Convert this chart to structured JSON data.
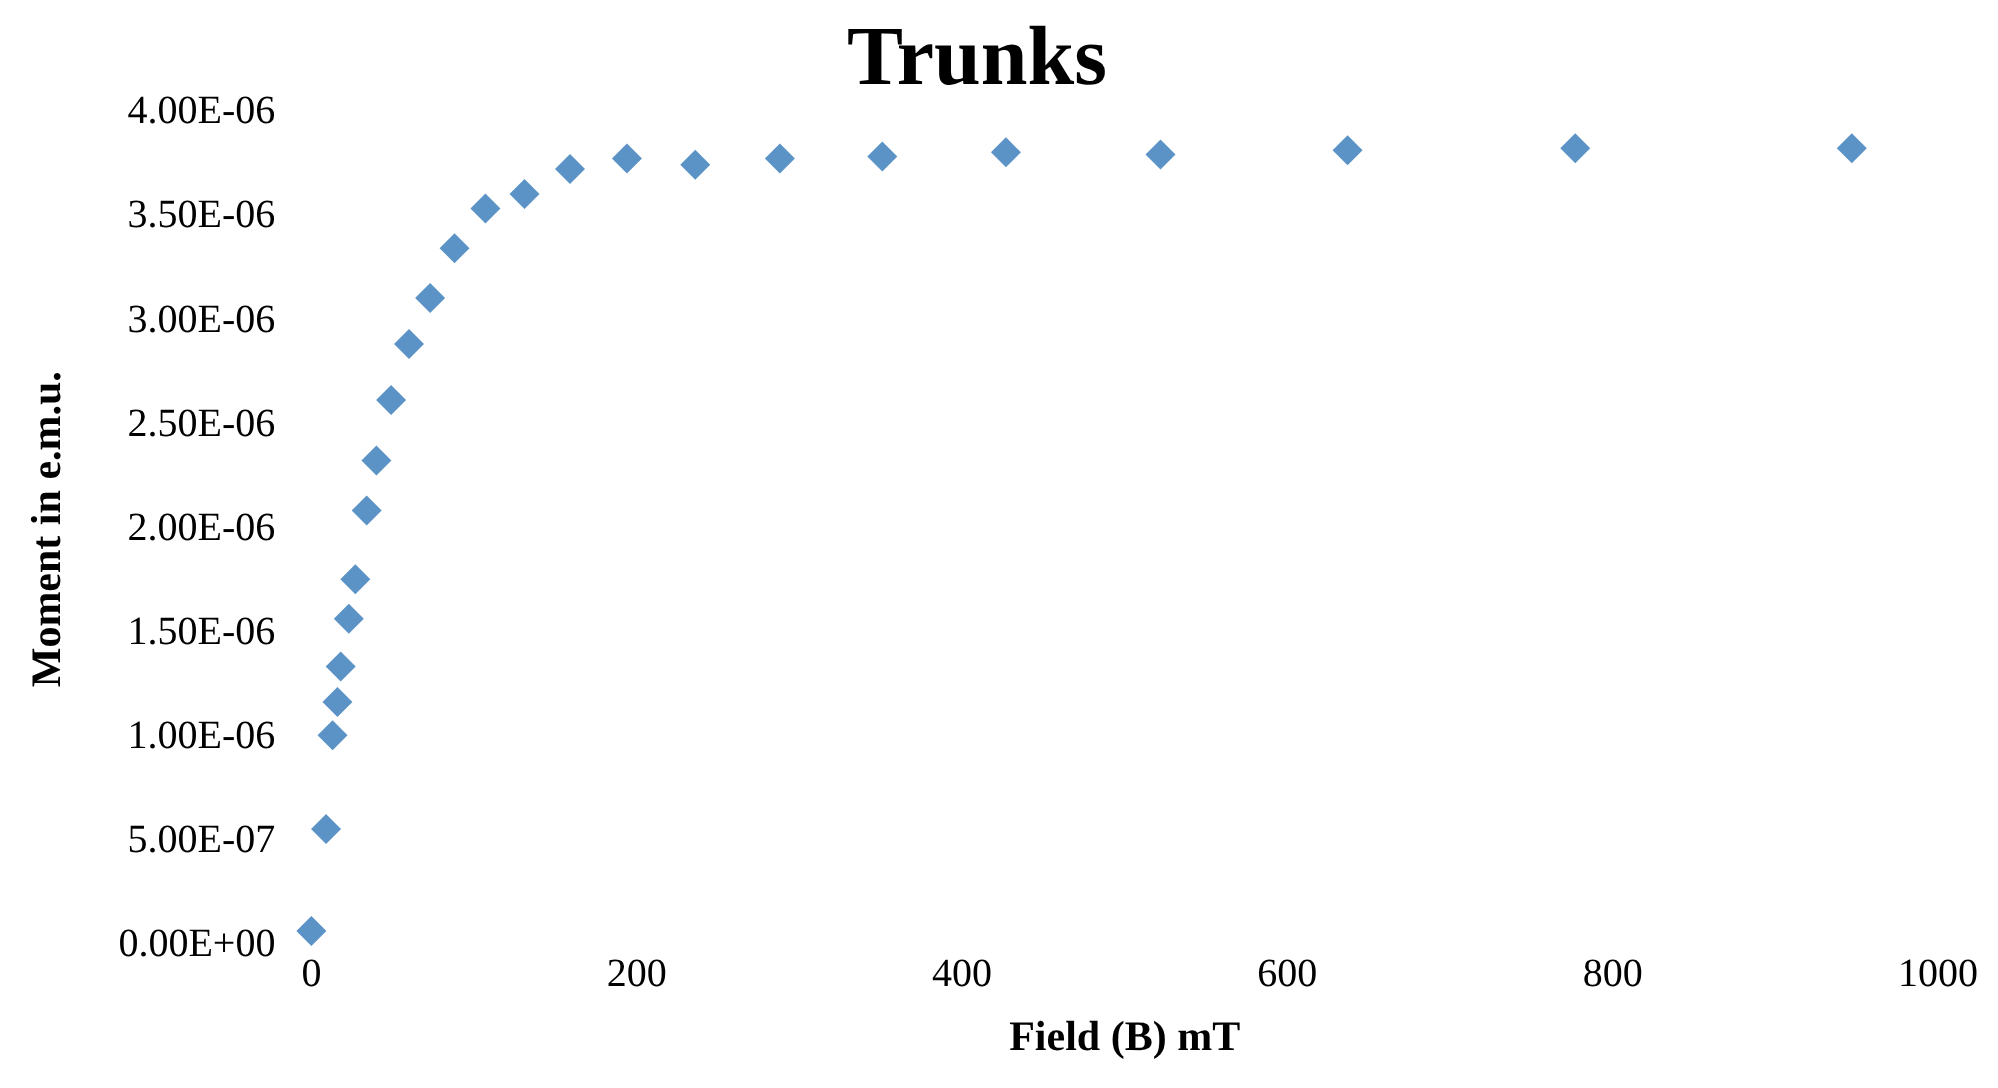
{
  "chart_data": {
    "type": "scatter",
    "title": "Trunks",
    "xlabel": "Field (B) mT",
    "ylabel": "Moment in e.m.u.",
    "x": [
      0,
      9,
      13,
      16,
      18,
      23,
      27,
      34,
      40,
      49,
      60,
      73,
      88,
      107,
      131,
      159,
      194,
      236,
      288,
      351,
      427,
      522,
      637,
      777,
      947
    ],
    "series": [
      {
        "color": "#5b93c7",
        "values": [
          7e-08,
          5.6e-07,
          1.01e-06,
          1.17e-06,
          1.34e-06,
          1.57e-06,
          1.76e-06,
          2.09e-06,
          2.33e-06,
          2.62e-06,
          2.89e-06,
          3.11e-06,
          3.35e-06,
          3.54e-06,
          3.61e-06,
          3.73e-06,
          3.78e-06,
          3.75e-06,
          3.78e-06,
          3.79e-06,
          3.81e-06,
          3.8e-06,
          3.82e-06,
          3.83e-06,
          3.83e-06
        ]
      }
    ],
    "marker": "diamond",
    "grid": false,
    "legend": false,
    "xlim": [
      0,
      1000
    ],
    "xticks": [
      0,
      200,
      400,
      600,
      800,
      1000
    ],
    "ylim": [
      0,
      4e-06
    ],
    "yticks": [
      {
        "value": 0,
        "label": "0.00E+00"
      },
      {
        "value": 5e-07,
        "label": "5.00E-07"
      },
      {
        "value": 1e-06,
        "label": "1.00E-06"
      },
      {
        "value": 1.5e-06,
        "label": "1.50E-06"
      },
      {
        "value": 2e-06,
        "label": "2.00E-06"
      },
      {
        "value": 2.5e-06,
        "label": "2.50E-06"
      },
      {
        "value": 3e-06,
        "label": "3.00E-06"
      },
      {
        "value": 3.5e-06,
        "label": "3.50E-06"
      },
      {
        "value": 4e-06,
        "label": "4.00E-06"
      }
    ]
  }
}
